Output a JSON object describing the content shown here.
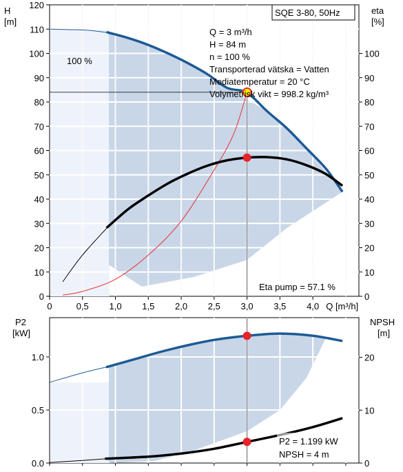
{
  "chart_data": [
    {
      "type": "line",
      "title": "SQE 3-80, 50Hz",
      "left_axis": {
        "label_line1": "H",
        "label_line2": "[m]",
        "ylim": [
          0,
          120
        ],
        "ticks": [
          "0",
          "10",
          "20",
          "30",
          "40",
          "50",
          "60",
          "70",
          "80",
          "90",
          "100",
          "110",
          "120"
        ]
      },
      "right_axis": {
        "label_line1": "eta",
        "label_line2": "[%]",
        "ylim": [
          0,
          120
        ],
        "ticks": [
          "0",
          "10",
          "20",
          "30",
          "40",
          "50",
          "60",
          "70",
          "80",
          "90",
          "100"
        ]
      },
      "x_axis": {
        "label": "Q [m³/h]",
        "xlim": [
          0,
          4.7
        ],
        "ticks": [
          "0",
          "0,5",
          "1,0",
          "1,5",
          "2,0",
          "2,5",
          "3,0",
          "3,5",
          "4,0"
        ]
      },
      "speed_label": "100 %",
      "info_lines": [
        "Q = 3 m³/h",
        "H = 84 m",
        "n = 100 %",
        "Transporterad vätska = Vatten",
        "Mediatemperatur = 20 °C",
        "Volymetrisk vikt = 998.2 kg/m³"
      ],
      "eta_label": "Eta pump = 57.1 %",
      "operating_point": {
        "Q": 3.0,
        "H": 84,
        "eta": 57.1
      },
      "series": [
        {
          "id": "H",
          "x": [
            0,
            0.3,
            0.6,
            0.9,
            1.2,
            1.5,
            1.8,
            2.1,
            2.4,
            2.7,
            3.0,
            3.3,
            3.6,
            3.9,
            4.2,
            4.45
          ],
          "y": [
            110,
            109.8,
            109.5,
            108.5,
            106.3,
            103.5,
            100,
            96,
            91.4,
            85.8,
            83.8,
            76.3,
            69.3,
            61,
            52.5,
            43
          ]
        },
        {
          "id": "eta",
          "x": [
            0.2,
            0.5,
            0.9,
            1.2,
            1.5,
            1.8,
            2.1,
            2.4,
            2.7,
            3.0,
            3.3,
            3.6,
            3.9,
            4.2,
            4.45
          ],
          "y": [
            6,
            17,
            29,
            36,
            41.5,
            46.5,
            50.5,
            53.8,
            56,
            57.1,
            57.3,
            56.4,
            54,
            50.3,
            45.5
          ]
        },
        {
          "id": "system",
          "x": [
            0.2,
            0.5,
            1.0,
            1.5,
            2.0,
            2.5,
            2.8,
            3.0
          ],
          "y": [
            0.5,
            2,
            7,
            17,
            31,
            52,
            67,
            84
          ]
        }
      ],
      "range_fill": [
        [
          0.9,
          108.5
        ],
        [
          1.5,
          103.5
        ],
        [
          2.1,
          96
        ],
        [
          2.7,
          85.8
        ],
        [
          3.3,
          76.3
        ],
        [
          3.9,
          61
        ],
        [
          4.45,
          43
        ],
        [
          3.6,
          28
        ],
        [
          3.0,
          15
        ],
        [
          2.2,
          8
        ],
        [
          1.4,
          4
        ],
        [
          0.9,
          13
        ]
      ]
    },
    {
      "type": "line",
      "left_axis": {
        "label_line1": "P2",
        "label_line2": "[kW]",
        "ylim": [
          0,
          1.37
        ],
        "ticks": [
          "0.0",
          "0.5",
          "1.0"
        ]
      },
      "right_axis": {
        "label_line1": "NPSH",
        "label_line2": "[m]",
        "ylim": [
          0,
          27.5
        ],
        "ticks": [
          "0",
          "10",
          "20"
        ]
      },
      "p2_label": "P2 = 1.199 kW",
      "npsh_label": "NPSH = 4 m",
      "operating_point": {
        "Q": 3.0,
        "P2": 1.199,
        "NPSH": 4
      },
      "series": [
        {
          "id": "P2",
          "x": [
            0,
            0.5,
            0.9,
            1.3,
            1.7,
            2.1,
            2.5,
            3.0,
            3.5,
            4.0,
            4.45
          ],
          "y": [
            0.76,
            0.85,
            0.91,
            0.98,
            1.05,
            1.11,
            1.16,
            1.199,
            1.22,
            1.2,
            1.15
          ]
        },
        {
          "id": "NPSH",
          "x": [
            0,
            0.5,
            0.9,
            1.5,
            2.0,
            2.5,
            3.0,
            3.5,
            4.0,
            4.45
          ],
          "y": [
            0.1,
            0.5,
            0.85,
            1.2,
            1.8,
            2.7,
            4,
            5.3,
            6.8,
            8.5
          ]
        }
      ],
      "range_fill": [
        [
          0.9,
          0.91
        ],
        [
          1.5,
          1.0
        ],
        [
          2.1,
          1.11
        ],
        [
          2.7,
          1.17
        ],
        [
          3.3,
          1.215
        ],
        [
          3.9,
          1.21
        ],
        [
          4.2,
          1.18
        ],
        [
          3.9,
          0.8
        ],
        [
          3.5,
          0.5
        ],
        [
          3.0,
          0.3
        ],
        [
          2.2,
          0.12
        ],
        [
          1.6,
          0.02
        ],
        [
          0.9,
          0.0
        ]
      ]
    }
  ]
}
